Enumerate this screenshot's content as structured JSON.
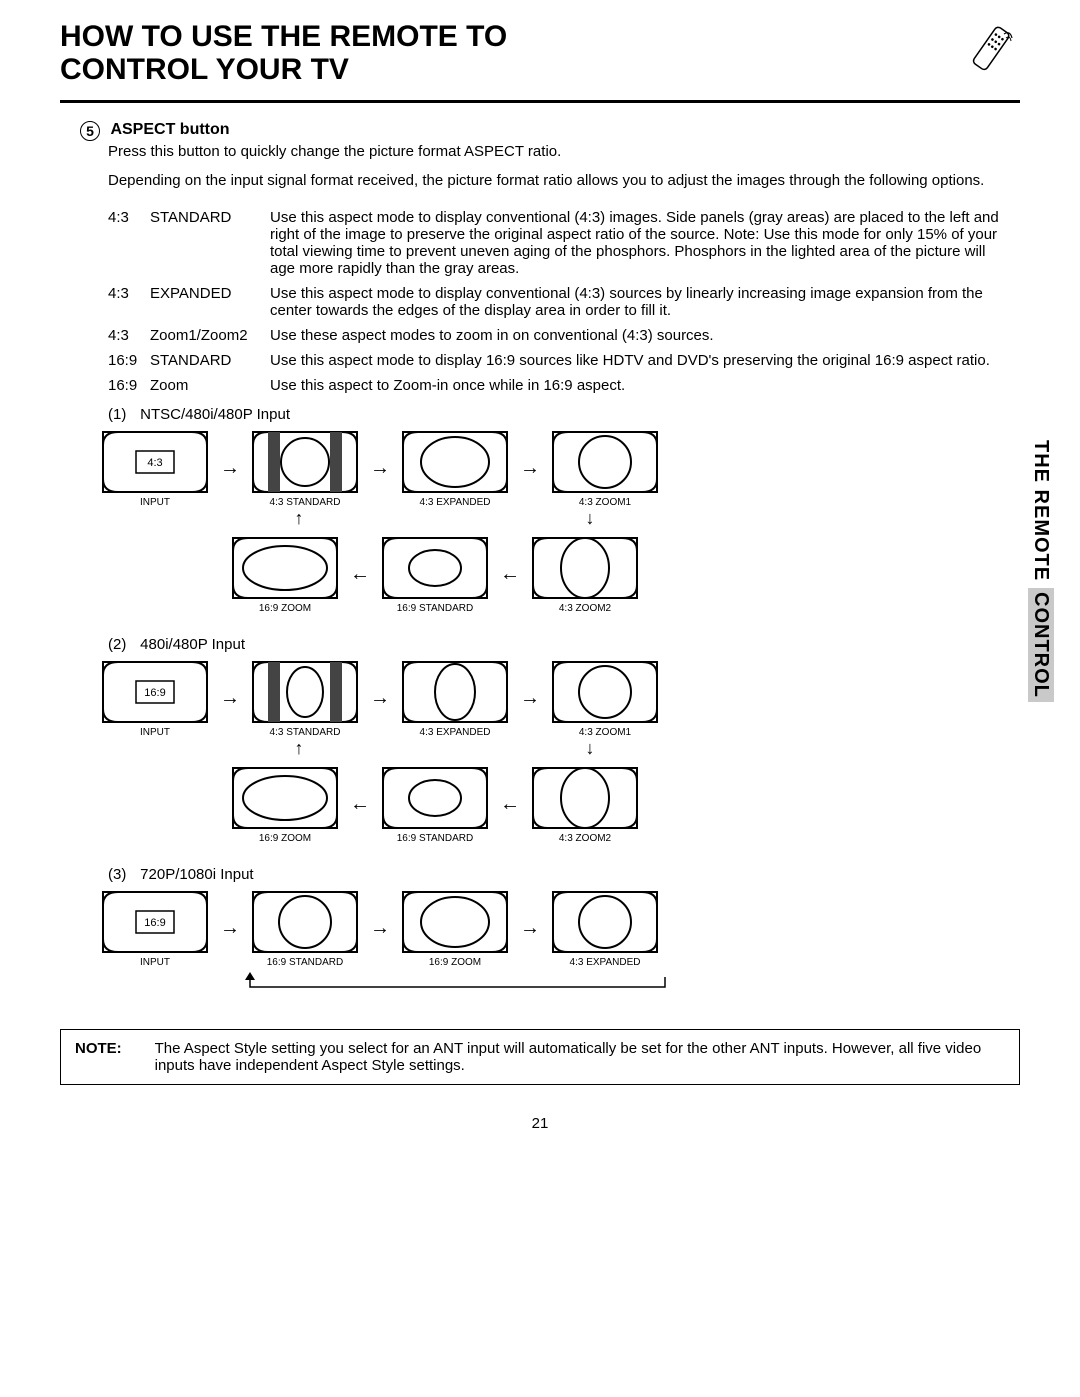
{
  "title_line1": "HOW TO USE THE REMOTE TO",
  "title_line2": "CONTROL YOUR TV",
  "section_number": "5",
  "section_heading": "ASPECT button",
  "intro1": "Press this button to quickly change the picture format ASPECT ratio.",
  "intro2": "Depending on the input signal format received, the picture format ratio allows you to adjust the images through the following options.",
  "aspect_rows": [
    {
      "ratio": "4:3",
      "name": "STANDARD",
      "desc": "Use this aspect mode to display conventional (4:3) images.  Side panels (gray areas) are placed to the left and right of the image to preserve the original aspect ratio of the source.  Note:  Use this mode for only 15% of your total viewing time to prevent uneven aging of the phosphors.  Phosphors in the lighted area of the picture will age more rapidly than the gray areas."
    },
    {
      "ratio": "4:3",
      "name": "EXPANDED",
      "desc": "Use this aspect mode to display conventional (4:3) sources by linearly increasing image expansion from the center towards the edges of the display area in order to fill it."
    },
    {
      "ratio": "4:3",
      "name": "Zoom1/Zoom2",
      "desc": "Use these aspect modes to zoom in on conventional (4:3) sources."
    },
    {
      "ratio": "16:9",
      "name": "STANDARD",
      "desc": "Use this aspect mode to display 16:9 sources like HDTV and DVD's preserving the original 16:9 aspect ratio."
    },
    {
      "ratio": "16:9",
      "name": "Zoom",
      "desc": "Use this aspect to Zoom-in once while in 16:9 aspect."
    }
  ],
  "diagrams": [
    {
      "num": "(1)",
      "label": "NTSC/480i/480P Input",
      "row1": [
        {
          "type": "input",
          "text": "4:3",
          "cap": "INPUT"
        },
        {
          "type": "pillarbox",
          "cap": "4:3 STANDARD"
        },
        {
          "type": "wide_oval",
          "cap": "4:3 EXPANDED"
        },
        {
          "type": "big_circle",
          "cap": "4:3 ZOOM1"
        }
      ],
      "row2": [
        {
          "type": "very_wide_oval",
          "cap": "16:9 ZOOM"
        },
        {
          "type": "wide_oval_small",
          "cap": "16:9 STANDARD"
        },
        {
          "type": "tall_oval",
          "cap": "4:3 ZOOM2"
        }
      ]
    },
    {
      "num": "(2)",
      "label": "480i/480P Input",
      "row1": [
        {
          "type": "input",
          "text": "16:9",
          "cap": "INPUT"
        },
        {
          "type": "pillarbox_oval",
          "cap": "4:3 STANDARD"
        },
        {
          "type": "vert_oval",
          "cap": "4:3 EXPANDED"
        },
        {
          "type": "big_circle",
          "cap": "4:3 ZOOM1"
        }
      ],
      "row2": [
        {
          "type": "very_wide_oval",
          "cap": "16:9 ZOOM"
        },
        {
          "type": "wide_oval_small",
          "cap": "16:9 STANDARD"
        },
        {
          "type": "tall_oval",
          "cap": "4:3 ZOOM2"
        }
      ]
    },
    {
      "num": "(3)",
      "label": "720P/1080i Input",
      "row1": [
        {
          "type": "input",
          "text": "16:9",
          "cap": "INPUT"
        },
        {
          "type": "big_circle",
          "cap": "16:9 STANDARD"
        },
        {
          "type": "wide_oval",
          "cap": "16:9 ZOOM"
        },
        {
          "type": "big_circle",
          "cap": "4:3 EXPANDED"
        }
      ]
    }
  ],
  "side_tab_plain": "THE REMOTE ",
  "side_tab_shaded": "CONTROL",
  "note_label": "NOTE:",
  "note_text": "The Aspect Style setting you select for an ANT input will automatically be set for the other ANT inputs.  However, all five video inputs have independent Aspect Style settings.",
  "page_number": "21",
  "colors": {
    "black": "#000000",
    "gray": "#c9c9c9",
    "pillarbox": "#555555",
    "white": "#ffffff"
  }
}
